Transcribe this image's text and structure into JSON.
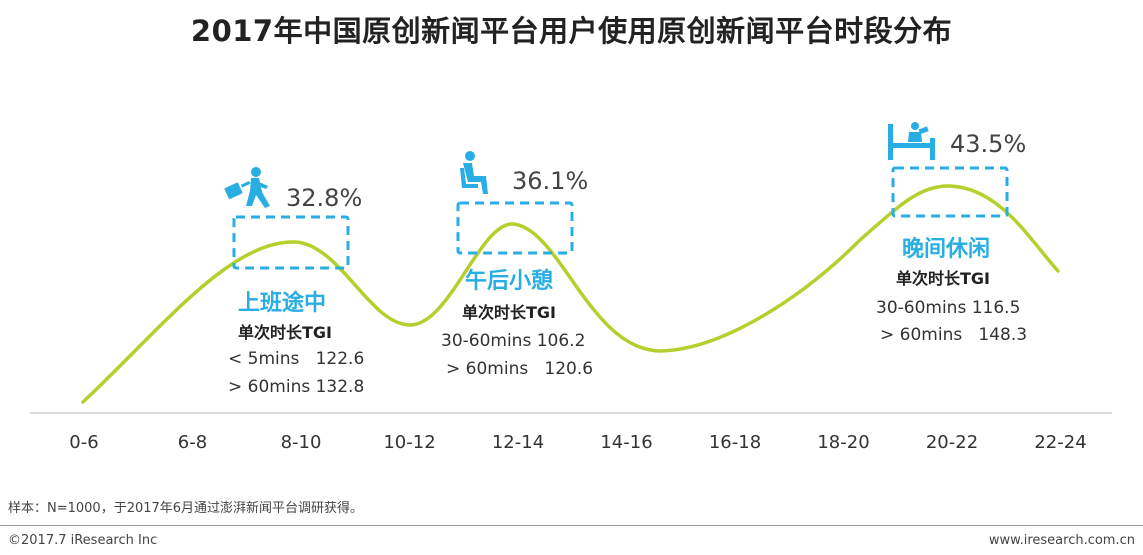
{
  "title": "2017年中国原创新闻平台用户使用原创新闻平台时段分布",
  "footnote": "样本：N=1000，于2017年6月通过澎湃新闻平台调研获得。",
  "footer": {
    "copyright": "©2017.7 iResearch Inc",
    "site": "www.iresearch.com.cn"
  },
  "colors": {
    "curve": "#b5cf2c",
    "accent": "#29aee3"
  },
  "chart_data": {
    "type": "line",
    "categories": [
      "0-6",
      "6-8",
      "8-10",
      "10-12",
      "12-14",
      "14-16",
      "16-18",
      "18-20",
      "20-22",
      "22-24"
    ],
    "peaks": [
      {
        "slot": "8-10",
        "value_label": "32.8%",
        "name": "上班途中",
        "icon": "commuter-running-icon",
        "tgi_title": "单次时长TGI",
        "tgi": [
          "< 5mins   122.6",
          "> 60mins 132.8"
        ]
      },
      {
        "slot": "12-14",
        "value_label": "36.1%",
        "name": "午后小憩",
        "icon": "seated-person-icon",
        "tgi_title": "单次时长TGI",
        "tgi": [
          "30-60mins 106.2",
          "> 60mins   120.6"
        ]
      },
      {
        "slot": "20-22",
        "value_label": "43.5%",
        "name": "晚间休闲",
        "icon": "bed-reading-icon",
        "tgi_title": "单次时长TGI",
        "tgi": [
          "30-60mins 116.5",
          "> 60mins   148.3"
        ]
      }
    ],
    "grid": false,
    "legend": "none"
  }
}
